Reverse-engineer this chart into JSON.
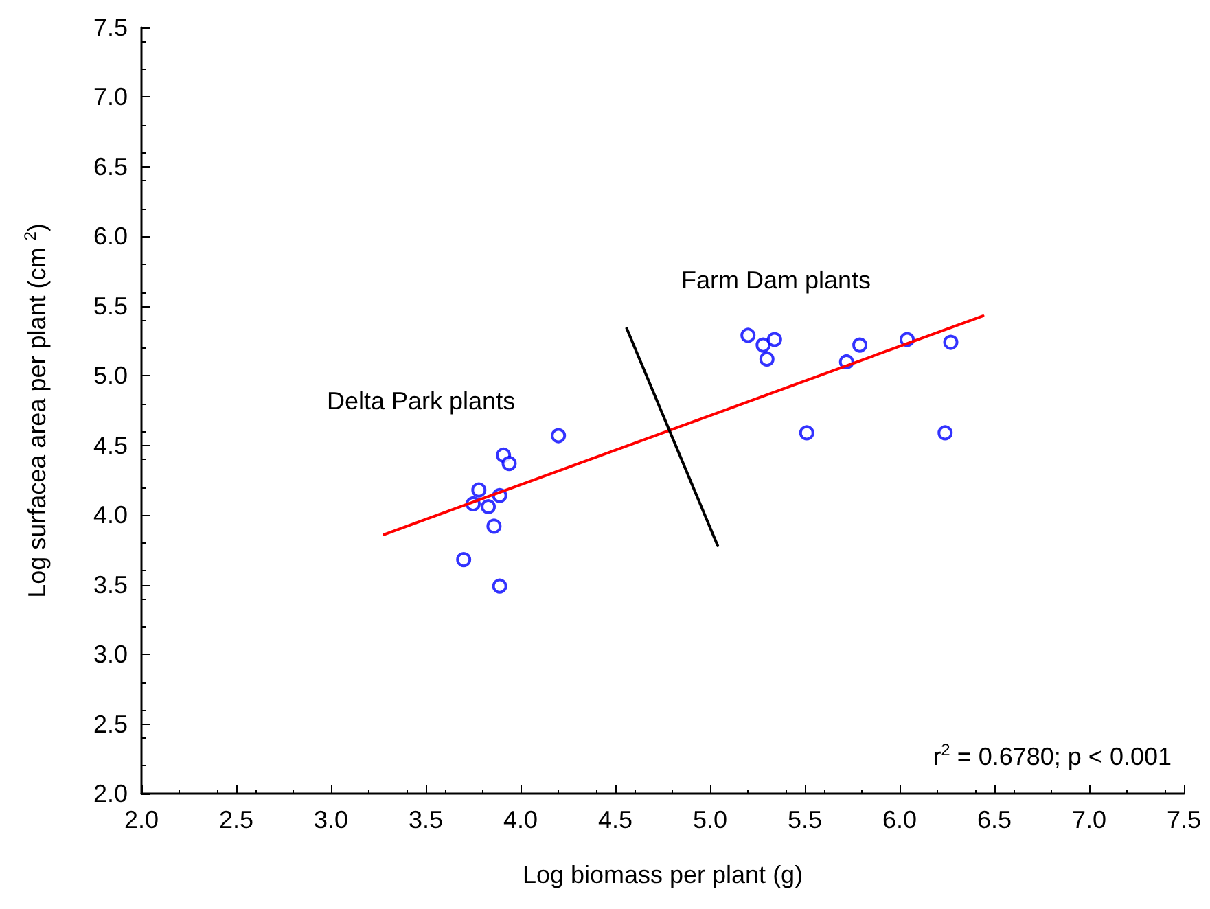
{
  "chart_data": {
    "type": "scatter",
    "xlabel": "Log biomass per plant (g)",
    "ylabel": "Log surfacea area per plant (cm $^{2}$)",
    "xlim": [
      2.0,
      7.5
    ],
    "xticks": [
      {
        "value": 2,
        "label": "2.0"
      },
      {
        "value": 2.5,
        "label": "2.5"
      },
      {
        "value": 3,
        "label": "3.0"
      },
      {
        "value": 3.5,
        "label": "3.5"
      },
      {
        "value": 4,
        "label": "4.0"
      },
      {
        "value": 4.5,
        "label": "4.5"
      },
      {
        "value": 5,
        "label": "5.0"
      },
      {
        "value": 5.5,
        "label": "5.5"
      },
      {
        "value": 6,
        "label": "6.0"
      },
      {
        "value": 6.5,
        "label": "6.5"
      },
      {
        "value": 7,
        "label": "7.0"
      },
      {
        "value": 7.5,
        "label": "7.5"
      }
    ],
    "ylim": [
      2.0,
      7.5
    ],
    "yticks": [
      {
        "value": 2,
        "label": "2.0"
      },
      {
        "value": 2.5,
        "label": "2.5"
      },
      {
        "value": 3,
        "label": "3.0"
      },
      {
        "value": 3.5,
        "label": "3.5"
      },
      {
        "value": 4,
        "label": "4.0"
      },
      {
        "value": 4.5,
        "label": "4.5"
      },
      {
        "value": 5,
        "label": "5.0"
      },
      {
        "value": 5.5,
        "label": "5.5"
      },
      {
        "value": 6,
        "label": "6.0"
      },
      {
        "value": 6.5,
        "label": "6.5"
      },
      {
        "value": 7,
        "label": "7.0"
      },
      {
        "value": 7.5,
        "label": "7.5"
      }
    ],
    "grid": false,
    "series": [
      {
        "color": "#0000ff",
        "marker": "circle",
        "x": [
          3.7,
          3.75,
          3.78,
          3.83,
          3.86,
          3.89,
          3.89,
          3.91,
          3.94,
          4.2,
          5.2,
          5.28,
          5.34,
          5.3,
          5.51,
          5.72,
          5.79,
          6.04,
          6.27,
          6.24
        ],
        "values": [
          3.68,
          4.08,
          4.18,
          4.06,
          3.92,
          4.14,
          3.49,
          4.43,
          4.37,
          4.57,
          5.29,
          5.22,
          5.26,
          5.12,
          4.59,
          5.1,
          5.22,
          5.26,
          5.24,
          4.59
        ]
      },
      {
        "type": "line",
        "color": "#ff0000",
        "marker": "none",
        "line_style": "solid",
        "x": [
          3.28,
          6.44
        ],
        "values": [
          3.86,
          5.43
        ]
      },
      {
        "type": "line",
        "color": "#000000",
        "marker": "none",
        "line_style": "solid",
        "x": [
          4.56,
          5.04
        ],
        "values": [
          5.34,
          3.78
        ]
      }
    ],
    "annotations": [
      "Delta Park plants",
      "Farm Dam plants",
      "r$^{2}$ = 0.6780; p < 0.001"
    ]
  }
}
